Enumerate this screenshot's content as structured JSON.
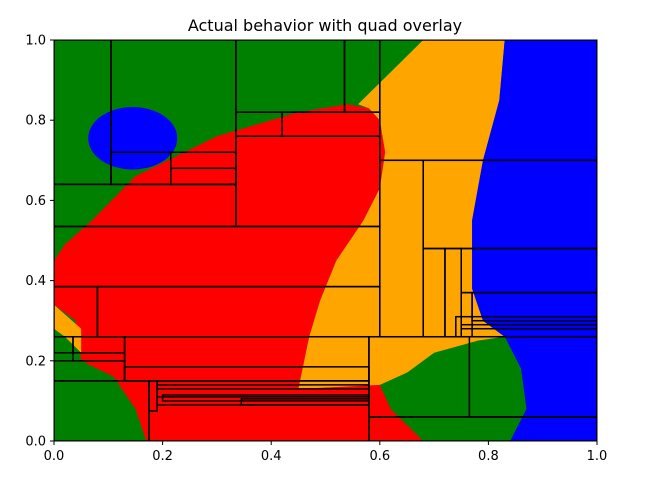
{
  "chart_data": {
    "type": "heatmap",
    "title": "Actual behavior with quad overlay",
    "xlabel": "",
    "ylabel": "",
    "xlim": [
      0,
      1
    ],
    "ylim": [
      0,
      1
    ],
    "xticks": [
      "0.0",
      "0.2",
      "0.4",
      "0.6",
      "0.8",
      "1.0"
    ],
    "yticks": [
      "0.0",
      "0.2",
      "0.4",
      "0.6",
      "0.8",
      "1.0"
    ],
    "region_colors": {
      "green": "#008000",
      "red": "#ff0000",
      "orange": "#ffa500",
      "blue": "#0000ff"
    },
    "regions": [
      {
        "color": "green",
        "points": [
          [
            0,
            0
          ],
          [
            0.17,
            0
          ],
          [
            0.15,
            0.08
          ],
          [
            0.11,
            0.16
          ],
          [
            0.05,
            0.2
          ],
          [
            0,
            0.2
          ]
        ]
      },
      {
        "color": "red",
        "points": [
          [
            0.17,
            0
          ],
          [
            0.68,
            0
          ],
          [
            0.62,
            0.08
          ],
          [
            0.6,
            0.14
          ],
          [
            0.45,
            0.13
          ],
          [
            0.47,
            0.26
          ],
          [
            0.49,
            0.35
          ],
          [
            0.52,
            0.45
          ],
          [
            0.57,
            0.55
          ],
          [
            0.6,
            0.63
          ],
          [
            0.61,
            0.72
          ],
          [
            0.6,
            0.8
          ],
          [
            0.58,
            0.83
          ],
          [
            0.54,
            0.84
          ],
          [
            0.45,
            0.82
          ],
          [
            0.3,
            0.76
          ],
          [
            0.15,
            0.66
          ],
          [
            0.07,
            0.55
          ],
          [
            0.02,
            0.49
          ],
          [
            0,
            0.45
          ],
          [
            0,
            0.34
          ],
          [
            0.04,
            0.3
          ],
          [
            0.05,
            0.2
          ],
          [
            0.11,
            0.16
          ],
          [
            0.15,
            0.08
          ]
        ]
      },
      {
        "color": "orange",
        "points": [
          [
            0.6,
            0.14
          ],
          [
            0.78,
            0.25
          ],
          [
            0.83,
            0.26
          ],
          [
            0.79,
            0.3
          ],
          [
            0.77,
            0.38
          ],
          [
            0.77,
            0.55
          ],
          [
            0.79,
            0.7
          ],
          [
            0.82,
            0.85
          ],
          [
            0.83,
            1
          ],
          [
            0.68,
            1
          ],
          [
            0.62,
            0.92
          ],
          [
            0.56,
            0.84
          ],
          [
            0.58,
            0.83
          ],
          [
            0.6,
            0.8
          ],
          [
            0.61,
            0.72
          ],
          [
            0.6,
            0.63
          ],
          [
            0.57,
            0.55
          ],
          [
            0.52,
            0.45
          ],
          [
            0.49,
            0.35
          ],
          [
            0.47,
            0.26
          ],
          [
            0.45,
            0.13
          ]
        ]
      },
      {
        "color": "orange",
        "points": [
          [
            0,
            0.34
          ],
          [
            0.05,
            0.28
          ],
          [
            0.05,
            0.22
          ],
          [
            0.02,
            0.26
          ],
          [
            0,
            0.28
          ]
        ]
      },
      {
        "color": "blue",
        "points": [
          [
            0.83,
            1
          ],
          [
            1,
            1
          ],
          [
            1,
            0
          ],
          [
            0.84,
            0
          ],
          [
            0.87,
            0.08
          ],
          [
            0.86,
            0.18
          ],
          [
            0.83,
            0.26
          ],
          [
            0.79,
            0.3
          ],
          [
            0.77,
            0.38
          ],
          [
            0.77,
            0.55
          ],
          [
            0.79,
            0.7
          ],
          [
            0.82,
            0.85
          ]
        ]
      },
      {
        "color": "green",
        "points": [
          [
            0.62,
            0.08
          ],
          [
            0.68,
            0
          ],
          [
            0.84,
            0
          ],
          [
            0.87,
            0.08
          ],
          [
            0.86,
            0.18
          ],
          [
            0.83,
            0.26
          ],
          [
            0.78,
            0.25
          ],
          [
            0.7,
            0.22
          ],
          [
            0.65,
            0.17
          ]
        ]
      }
    ],
    "blue_blob": {
      "cx": 0.145,
      "cy": 0.755,
      "rx": 0.082,
      "ry": 0.078
    },
    "quad_rectangles": [
      [
        0,
        0.64,
        0.105,
        1
      ],
      [
        0.105,
        0.64,
        0.335,
        1
      ],
      [
        0.335,
        0.82,
        0.535,
        1
      ],
      [
        0.535,
        0.82,
        0.6,
        1
      ],
      [
        0.335,
        0.76,
        0.6,
        0.82
      ],
      [
        0.42,
        0.76,
        0.6,
        0.82
      ],
      [
        0.105,
        0.64,
        0.215,
        0.72
      ],
      [
        0.215,
        0.64,
        0.335,
        0.72
      ],
      [
        0.215,
        0.64,
        0.335,
        0.68
      ],
      [
        0,
        0.535,
        0.335,
        0.64
      ],
      [
        0.335,
        0.535,
        0.6,
        0.76
      ],
      [
        0.6,
        0.7,
        1,
        1
      ],
      [
        0.6,
        0.26,
        0.68,
        0.7
      ],
      [
        0.68,
        0.48,
        1,
        0.7
      ],
      [
        0.68,
        0.26,
        0.72,
        0.48
      ],
      [
        0.72,
        0.26,
        0.75,
        0.48
      ],
      [
        0.75,
        0.37,
        1,
        0.48
      ],
      [
        0.75,
        0.26,
        0.77,
        0.37
      ],
      [
        0.77,
        0.3,
        1,
        0.37
      ],
      [
        0.74,
        0.26,
        1,
        0.31
      ],
      [
        0.75,
        0.28,
        1,
        0.29
      ],
      [
        0,
        0.385,
        0.6,
        0.535
      ],
      [
        0.08,
        0.26,
        0.6,
        0.385
      ],
      [
        0,
        0.26,
        0.08,
        0.385
      ],
      [
        0,
        0.22,
        0.035,
        0.26
      ],
      [
        0.035,
        0.22,
        0.13,
        0.26
      ],
      [
        0.035,
        0.2,
        0.13,
        0.22
      ],
      [
        0,
        0.15,
        0.13,
        0.2
      ],
      [
        0.13,
        0.15,
        0.58,
        0.26
      ],
      [
        0.13,
        0.15,
        0.58,
        0.185
      ],
      [
        0,
        0,
        0.175,
        0.15
      ],
      [
        0.175,
        0,
        0.58,
        0.15
      ],
      [
        0.175,
        0.075,
        0.19,
        0.15
      ],
      [
        0.19,
        0.09,
        0.58,
        0.14
      ],
      [
        0.19,
        0.11,
        0.58,
        0.13
      ],
      [
        0.2,
        0.1,
        0.58,
        0.115
      ],
      [
        0.345,
        0.09,
        0.58,
        0.105
      ],
      [
        0.58,
        0.06,
        1,
        0.26
      ],
      [
        0.765,
        0.06,
        1,
        0.26
      ],
      [
        0.58,
        0,
        1,
        0.06
      ]
    ]
  }
}
